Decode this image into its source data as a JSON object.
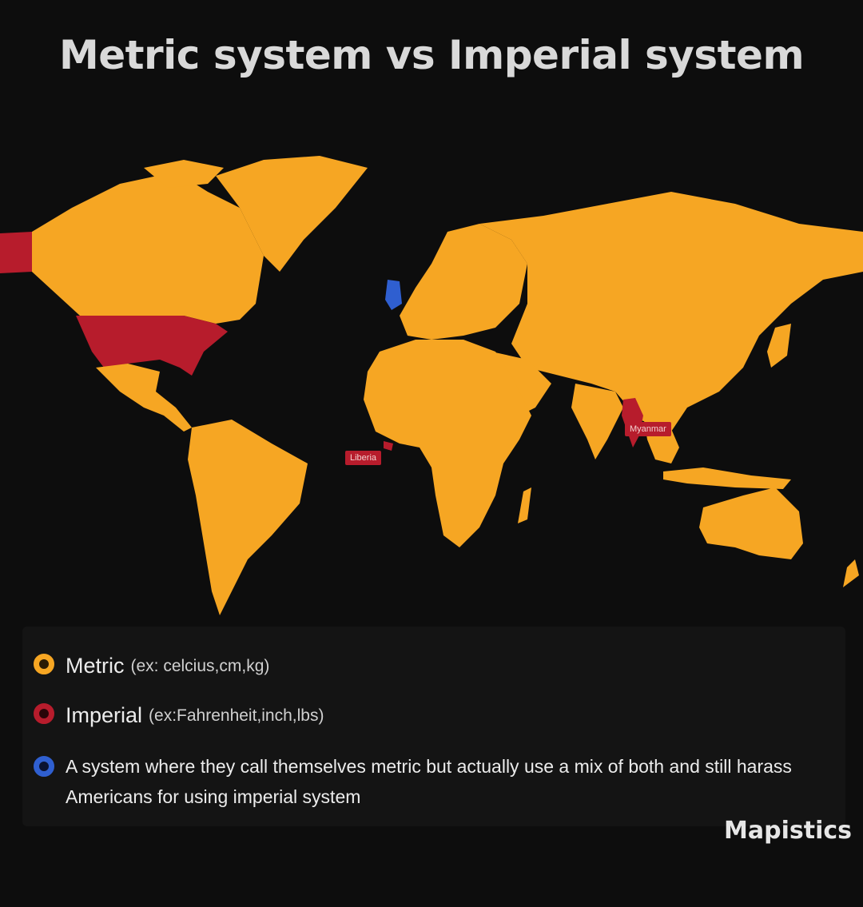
{
  "title": "Metric system vs Imperial system",
  "map_labels": {
    "liberia": "Liberia",
    "myanmar": "Myanmar"
  },
  "legend": {
    "metric": {
      "label": "Metric",
      "example": "(ex: celcius,cm,kg)",
      "color": "#f6a623"
    },
    "imperial": {
      "label": "Imperial",
      "example": "(ex:Fahrenheit,inch,lbs)",
      "color": "#b71c2c"
    },
    "mixed": {
      "label": "A system where they call themselves metric but actually use a mix of both and still harass Americans for using imperial system",
      "color": "#2f5fd0"
    }
  },
  "brand": "Mapistics",
  "colors": {
    "background": "#0d0d0d",
    "metric": "#f6a623",
    "imperial": "#b71c2c",
    "mixed": "#2f5fd0"
  }
}
